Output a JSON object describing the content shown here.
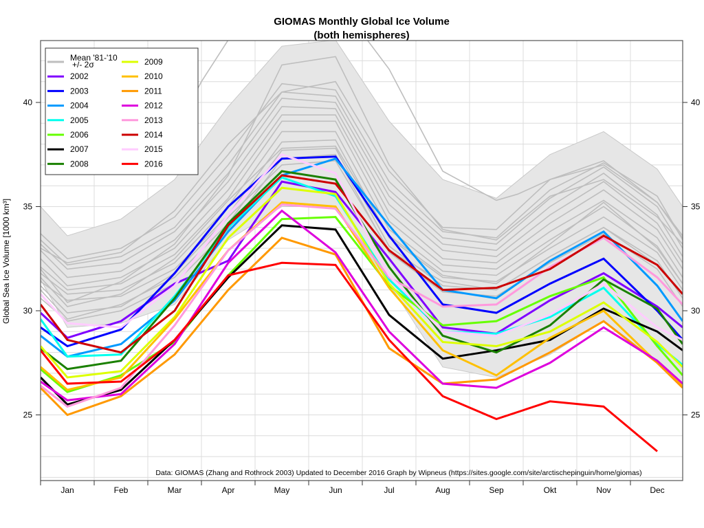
{
  "chart_data": {
    "type": "line",
    "title": "GIOMAS Monthly Global Ice Volume",
    "subtitle": "(both hemispheres)",
    "xlabel": "",
    "ylabel": "Global Sea Ice Volume [1000 km³]",
    "ylim": [
      22,
      43
    ],
    "yticks": [
      25,
      30,
      35,
      40
    ],
    "grid": true,
    "legend_position": "top-left",
    "categories": [
      "Jan",
      "Feb",
      "Mar",
      "Apr",
      "May",
      "Jun",
      "Jul",
      "Aug",
      "Sep",
      "Okt",
      "Nov",
      "Dec"
    ],
    "annotation": "Data: GIOMAS (Zhang and Rothrock 2003) Updated to December 2016    Graph by Wipneus (https://sites.google.com/site/arctischepinguin/home/giomas)",
    "band": {
      "name": "Mean '81-'10 +/- 2σ",
      "color": "#e6e6e6",
      "start": [
        31.5,
        35.0
      ],
      "upper": [
        33.6,
        34.4,
        36.3,
        39.8,
        42.7,
        43.0,
        39.1,
        36.3,
        35.4,
        37.5,
        38.6,
        36.8
      ],
      "lower": [
        29.2,
        29.4,
        30.3,
        33.4,
        35.0,
        35.0,
        31.3,
        27.3,
        26.8,
        27.9,
        29.5,
        27.5
      ],
      "end": [
        26.3,
        35.0
      ]
    },
    "legend": [
      {
        "label": "Mean '81-'10",
        "sublabel": "+/- 2σ",
        "color": "#bebebe"
      },
      {
        "label": "2002",
        "color": "#7f00ff"
      },
      {
        "label": "2003",
        "color": "#0000ff"
      },
      {
        "label": "2004",
        "color": "#0099ff"
      },
      {
        "label": "2005",
        "color": "#00ffee"
      },
      {
        "label": "2006",
        "color": "#66ff00"
      },
      {
        "label": "2007",
        "color": "#000000"
      },
      {
        "label": "2008",
        "color": "#1a8000"
      },
      {
        "label": "2009",
        "color": "#ddff00"
      },
      {
        "label": "2010",
        "color": "#ffc000"
      },
      {
        "label": "2011",
        "color": "#ff9900"
      },
      {
        "label": "2012",
        "color": "#dd00dd"
      },
      {
        "label": "2013",
        "color": "#ff99dd"
      },
      {
        "label": "2014",
        "color": "#cc0000"
      },
      {
        "label": "2015",
        "color": "#ffccff"
      },
      {
        "label": "2016",
        "color": "#ff0000"
      }
    ],
    "background_years": [
      {
        "start": 33.7,
        "values": [
          32.5,
          33.0,
          34.5,
          37.5,
          40.9,
          40.6,
          36.2,
          33.8,
          33.5,
          35.8,
          37.1,
          35.5
        ],
        "end": 33.4
      },
      {
        "start": 33.4,
        "values": [
          32.2,
          32.6,
          34.0,
          37.0,
          40.5,
          40.3,
          35.8,
          33.5,
          33.2,
          35.4,
          36.9,
          35.0
        ],
        "end": 33.0
      },
      {
        "start": 33.2,
        "values": [
          32.0,
          32.3,
          33.8,
          36.6,
          40.2,
          40.0,
          35.5,
          33.2,
          32.9,
          35.0,
          36.6,
          34.6
        ],
        "end": 32.6
      },
      {
        "start": 32.9,
        "values": [
          31.6,
          31.9,
          33.4,
          36.2,
          39.8,
          39.7,
          35.1,
          32.9,
          32.6,
          34.6,
          36.2,
          34.2
        ],
        "end": 32.3
      },
      {
        "start": 32.5,
        "values": [
          31.2,
          31.6,
          33.0,
          35.8,
          39.4,
          39.4,
          34.7,
          32.5,
          32.3,
          34.2,
          35.8,
          33.9
        ],
        "end": 32.0
      },
      {
        "start": 32.1,
        "values": [
          31.0,
          31.3,
          32.7,
          35.4,
          39.1,
          39.1,
          34.3,
          32.2,
          32.0,
          33.8,
          35.3,
          33.5
        ],
        "end": 31.6
      },
      {
        "start": 31.8,
        "values": [
          30.8,
          31.0,
          32.3,
          35.0,
          38.6,
          38.6,
          33.9,
          31.9,
          31.7,
          33.4,
          35.0,
          33.1
        ],
        "end": 31.3
      },
      {
        "start": 31.4,
        "values": [
          30.5,
          30.7,
          32.0,
          34.6,
          38.1,
          38.2,
          33.5,
          31.6,
          31.4,
          33.0,
          34.5,
          32.8
        ],
        "end": 31.0
      },
      {
        "start": 31.0,
        "values": [
          29.6,
          30.3,
          31.6,
          34.2,
          37.7,
          37.8,
          33.1,
          31.2,
          31.0,
          32.6,
          34.0,
          32.4
        ],
        "end": 30.6
      },
      {
        "start": 30.6,
        "values": [
          29.5,
          30.0,
          31.3,
          33.9,
          37.3,
          37.5,
          32.8,
          30.9,
          30.7,
          32.3,
          33.7,
          32.0
        ],
        "end": 30.2
      },
      {
        "start": 33.0,
        "values": [
          32.3,
          32.8,
          34.8,
          38.0,
          40.5,
          41.0,
          36.7,
          34.0,
          33.9,
          36.3,
          37.2,
          35.2
        ],
        "end": 33.6
      },
      {
        "start": 32.0,
        "values": [
          30.4,
          31.4,
          33.2,
          36.5,
          41.8,
          42.2,
          37.0,
          33.9,
          33.4,
          35.5,
          36.3,
          34.5
        ],
        "end": 33.2
      },
      {
        "start": 31.6,
        "values": [
          30.2,
          30.8,
          32.5,
          35.3,
          37.8,
          37.9,
          33.6,
          31.7,
          31.3,
          33.2,
          35.2,
          33.0
        ],
        "end": 31.3
      },
      {
        "start": 31.2,
        "values": [
          29.9,
          30.2,
          31.8,
          34.5,
          37.0,
          37.2,
          32.9,
          31.4,
          31.0,
          32.6,
          34.0,
          32.2
        ],
        "end": 30.8
      }
    ],
    "outlier_year": {
      "points": [
        [
          2.0,
          38.6
        ],
        [
          2.5,
          41.0
        ],
        [
          3.0,
          43.0
        ],
        [
          5.3,
          44.0
        ],
        [
          6.0,
          41.6
        ],
        [
          7.0,
          36.7
        ],
        [
          8.0,
          35.3
        ],
        [
          8.4,
          35.6
        ],
        [
          9.0,
          36.3
        ],
        [
          10.0,
          37.0
        ],
        [
          11.0,
          35.2
        ],
        [
          11.47,
          33.5
        ]
      ]
    },
    "series": [
      {
        "name": "2002",
        "color": "#7f00ff",
        "start": 29.9,
        "values": [
          28.7,
          29.5,
          31.3,
          32.4,
          36.2,
          35.7,
          32.5,
          29.2,
          28.9,
          30.5,
          31.8,
          30.2
        ],
        "end": 29.2
      },
      {
        "name": "2003",
        "color": "#0000ff",
        "start": 29.2,
        "values": [
          28.3,
          29.1,
          31.8,
          35.0,
          37.3,
          37.4,
          33.6,
          30.3,
          29.9,
          31.3,
          32.5,
          30.0
        ],
        "end": 28.6
      },
      {
        "name": "2004",
        "color": "#0099ff",
        "start": 28.8,
        "values": [
          27.8,
          28.4,
          30.5,
          33.8,
          36.5,
          37.3,
          34.1,
          31.0,
          30.6,
          32.4,
          33.8,
          31.2
        ],
        "end": 29.5
      },
      {
        "name": "2005",
        "color": "#00ffee",
        "start": 29.6,
        "values": [
          27.8,
          27.9,
          30.7,
          34.0,
          36.4,
          35.5,
          31.5,
          29.0,
          28.9,
          29.7,
          31.1,
          28.4
        ],
        "end": 27.4
      },
      {
        "name": "2006",
        "color": "#66ff00",
        "start": 27.2,
        "values": [
          26.1,
          26.9,
          28.5,
          31.7,
          34.4,
          34.5,
          31.2,
          29.3,
          29.5,
          30.7,
          31.6,
          28.3
        ],
        "end": 26.9
      },
      {
        "name": "2007",
        "color": "#000000",
        "start": 26.8,
        "values": [
          25.5,
          26.2,
          28.6,
          31.6,
          34.1,
          33.9,
          29.8,
          27.7,
          28.1,
          28.6,
          30.1,
          29.0
        ],
        "end": 28.1
      },
      {
        "name": "2008",
        "color": "#1a8000",
        "start": 28.2,
        "values": [
          27.2,
          27.6,
          30.6,
          34.2,
          36.7,
          36.3,
          32.1,
          28.8,
          28.0,
          29.3,
          31.5,
          30.1
        ],
        "end": 28.4
      },
      {
        "name": "2009",
        "color": "#ddff00",
        "start": 28.3,
        "values": [
          26.8,
          27.1,
          29.7,
          33.5,
          35.9,
          35.6,
          31.3,
          28.5,
          28.3,
          29.0,
          30.4,
          28.5
        ],
        "end": 27.3
      },
      {
        "name": "2010",
        "color": "#ffc000",
        "start": 27.3,
        "values": [
          26.2,
          26.8,
          29.6,
          32.9,
          35.2,
          35.0,
          31.1,
          28.1,
          26.9,
          28.7,
          30.0,
          27.5
        ],
        "end": 26.4
      },
      {
        "name": "2011",
        "color": "#ff9900",
        "start": 26.3,
        "values": [
          25.0,
          25.9,
          27.9,
          31.0,
          33.5,
          32.7,
          28.2,
          26.5,
          26.7,
          28.0,
          29.5,
          27.5
        ],
        "end": 26.3
      },
      {
        "name": "2012",
        "color": "#dd00dd",
        "start": 26.6,
        "values": [
          25.7,
          26.0,
          28.4,
          32.3,
          34.8,
          32.8,
          29.0,
          26.5,
          26.3,
          27.5,
          29.2,
          27.6
        ],
        "end": 26.5
      },
      {
        "name": "2013",
        "color": "#ff99dd",
        "start": 26.4,
        "values": [
          25.4,
          26.3,
          29.3,
          32.9,
          35.1,
          34.9,
          31.6,
          30.2,
          30.3,
          32.1,
          33.5,
          31.6
        ],
        "end": 30.3
      },
      {
        "name": "2014",
        "color": "#cc0000",
        "start": 30.3,
        "values": [
          28.6,
          28.0,
          30.0,
          34.1,
          36.5,
          36.1,
          32.9,
          31.0,
          31.1,
          32.0,
          33.6,
          32.2
        ],
        "end": 30.8
      },
      {
        "name": "2015",
        "color": "#ffccff",
        "start": 30.8,
        "values": [
          29.4,
          29.2,
          31.2,
          34.6,
          37.5,
          36.6,
          31.7,
          29.0,
          28.8,
          29.8,
          31.3,
          29.2
        ],
        "end": 28.6
      },
      {
        "name": "2016",
        "color": "#ff0000",
        "start": 28.1,
        "values": [
          26.5,
          26.6,
          28.6,
          31.7,
          32.3,
          32.2,
          28.6,
          25.9,
          24.8,
          25.65,
          25.4,
          23.25
        ],
        "end": null
      }
    ]
  }
}
